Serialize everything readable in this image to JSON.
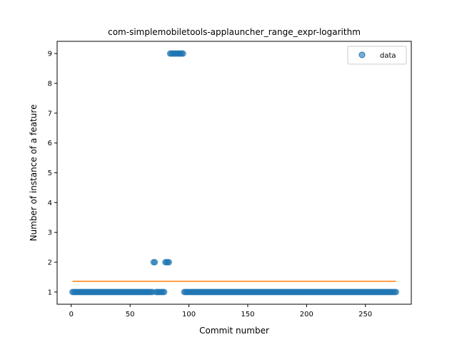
{
  "chart_data": {
    "type": "scatter",
    "title": "com-simplemobiletools-applauncher_range_expr-logarithm",
    "xlabel": "Commit number",
    "ylabel": "Number of instance of a feature",
    "xlim": [
      -12,
      289
    ],
    "ylim": [
      0.59,
      9.41
    ],
    "xticks": [
      0,
      50,
      100,
      150,
      200,
      250
    ],
    "yticks": [
      1,
      2,
      3,
      4,
      5,
      6,
      7,
      8,
      9
    ],
    "grid": false,
    "legend": {
      "placement": "top-right",
      "entries": [
        "data"
      ]
    },
    "colors": {
      "data": "#1f77b4",
      "fit": "#ff7f0e"
    },
    "series": [
      {
        "name": "data",
        "kind": "scatter",
        "segments": [
          {
            "from": 1,
            "to": 69,
            "y": 1
          },
          {
            "from": 70,
            "to": 71,
            "y": 2
          },
          {
            "from": 72,
            "to": 79,
            "y": 1
          },
          {
            "from": 80,
            "to": 83,
            "y": 2
          },
          {
            "from": 84,
            "to": 95,
            "y": 9
          },
          {
            "from": 96,
            "to": 276,
            "y": 1
          }
        ]
      },
      {
        "name": "",
        "kind": "line",
        "x": [
          1,
          276
        ],
        "y": [
          1.36,
          1.36
        ]
      }
    ]
  }
}
